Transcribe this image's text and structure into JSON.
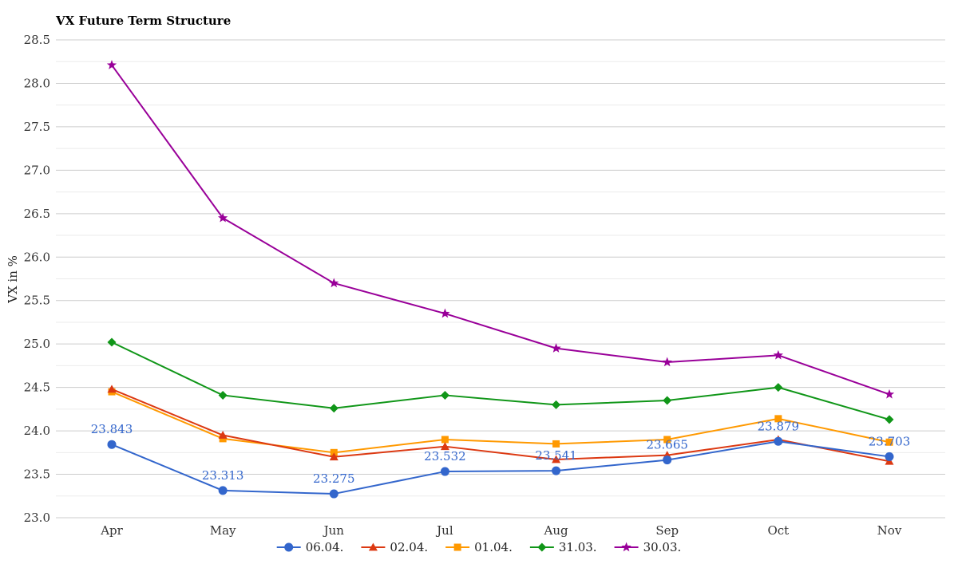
{
  "chart_data": {
    "type": "line",
    "title": "VX Future Term Structure",
    "ylabel": "VX in %",
    "xlabel": "",
    "ylim": [
      23.0,
      28.5
    ],
    "yticks": [
      23.0,
      23.5,
      24.0,
      24.5,
      25.0,
      25.5,
      26.0,
      26.5,
      27.0,
      27.5,
      28.0,
      28.5
    ],
    "ytick_labels": [
      "23.0",
      "23.5",
      "24.0",
      "24.5",
      "25.0",
      "25.5",
      "26.0",
      "26.5",
      "27.0",
      "27.5",
      "28.0",
      "28.5"
    ],
    "categories": [
      "Apr",
      "May",
      "Jun",
      "Jul",
      "Aug",
      "Sep",
      "Oct",
      "Nov"
    ],
    "grid": true,
    "legend_position": "bottom",
    "series": [
      {
        "name": "06.04.",
        "color": "#3366cc",
        "marker": "circle",
        "values": [
          23.843,
          23.313,
          23.275,
          23.532,
          23.541,
          23.665,
          23.879,
          23.703
        ],
        "labels": [
          "23.843",
          "23.313",
          "23.275",
          "23.532",
          "23.541",
          "23.665",
          "23.879",
          "23.703"
        ]
      },
      {
        "name": "02.04.",
        "color": "#dc3912",
        "marker": "triangle",
        "values": [
          24.48,
          23.95,
          23.7,
          23.82,
          23.67,
          23.72,
          23.9,
          23.65
        ]
      },
      {
        "name": "01.04.",
        "color": "#ff9900",
        "marker": "square",
        "values": [
          24.45,
          23.91,
          23.75,
          23.9,
          23.85,
          23.9,
          24.14,
          23.87
        ]
      },
      {
        "name": "31.03.",
        "color": "#109618",
        "marker": "diamond",
        "values": [
          25.02,
          24.41,
          24.26,
          24.41,
          24.3,
          24.35,
          24.5,
          24.13
        ]
      },
      {
        "name": "30.03.",
        "color": "#990099",
        "marker": "star",
        "values": [
          28.21,
          26.45,
          25.7,
          25.35,
          24.95,
          24.79,
          24.87,
          24.42
        ]
      }
    ]
  }
}
